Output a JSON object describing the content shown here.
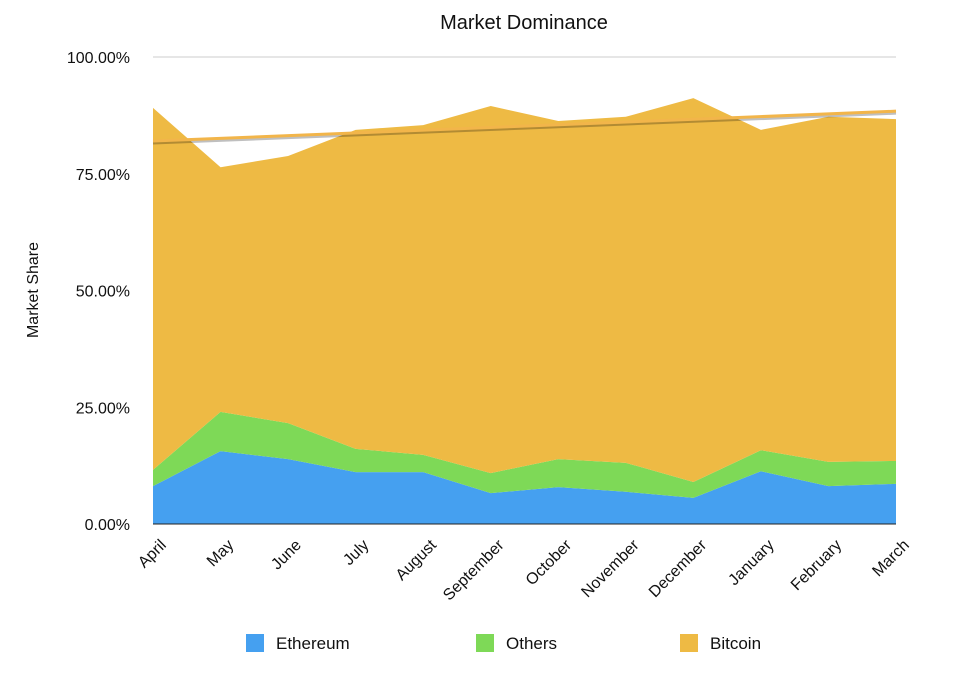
{
  "chart_data": {
    "type": "area",
    "stacked": true,
    "title": "Market Dominance",
    "xlabel": "",
    "ylabel": "Market Share",
    "ylim": [
      0,
      100
    ],
    "yticks": [
      "0.00%",
      "25.00%",
      "50.00%",
      "75.00%",
      "100.00%"
    ],
    "ytick_values": [
      0,
      25,
      50,
      75,
      100
    ],
    "grid": "top line only",
    "legend_position": "bottom",
    "categories": [
      "April",
      "May",
      "June",
      "July",
      "August",
      "September",
      "October",
      "November",
      "December",
      "January",
      "February",
      "March"
    ],
    "series": [
      {
        "name": "Ethereum",
        "color": "#45a0f0",
        "values": [
          8.1,
          15.6,
          13.9,
          11.1,
          11.1,
          6.6,
          7.9,
          6.9,
          5.6,
          11.3,
          8.1,
          8.6
        ]
      },
      {
        "name": "Others",
        "color": "#7ed957",
        "values": [
          3.5,
          8.4,
          7.7,
          5.0,
          3.7,
          4.3,
          6.0,
          6.2,
          3.4,
          4.5,
          5.2,
          4.9
        ]
      },
      {
        "name": "Bitcoin",
        "color": "#eeba44",
        "values": [
          77.5,
          52.4,
          57.2,
          68.3,
          70.6,
          78.6,
          72.4,
          74.1,
          82.2,
          68.6,
          73.9,
          73.2
        ]
      }
    ],
    "trendline": {
      "color": "#f2b54a",
      "start": 82.0,
      "end": 88.4
    }
  }
}
